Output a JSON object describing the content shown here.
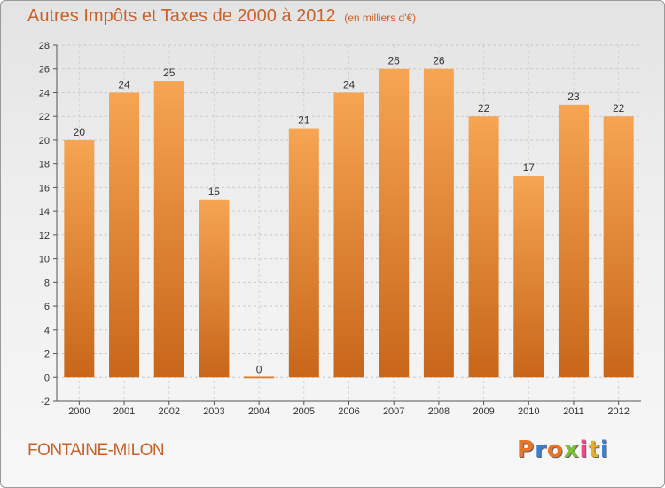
{
  "title": "Autres Impôts et Taxes de 2000 à 2012",
  "unit_note": "(en milliers d'€)",
  "commune": "FONTAINE-MILON",
  "logo": {
    "letters": [
      "P",
      "r",
      "o",
      "x",
      "i",
      "t",
      "i"
    ],
    "colors": [
      "#e8742a",
      "#3a7fd0",
      "#e8742a",
      "#7bbf3a",
      "#e84a8a",
      "#e8b02a",
      "#3a7fd0"
    ]
  },
  "colors": {
    "bar_light": "#f6a552",
    "bar_dark": "#c8661a",
    "accent": "#c8622a"
  },
  "chart_data": {
    "type": "bar",
    "title": "Autres Impôts et Taxes de 2000 à 2012",
    "categories": [
      "2000",
      "2001",
      "2002",
      "2003",
      "2004",
      "2005",
      "2006",
      "2007",
      "2008",
      "2009",
      "2010",
      "2011",
      "2012"
    ],
    "values": [
      20,
      24,
      25,
      15,
      0,
      21,
      24,
      26,
      26,
      22,
      17,
      23,
      22
    ],
    "ylim": [
      -2,
      28
    ],
    "yticks": [
      -2,
      0,
      2,
      4,
      6,
      8,
      10,
      12,
      14,
      16,
      18,
      20,
      22,
      24,
      26,
      28
    ],
    "grid": true,
    "xlabel": "",
    "ylabel": ""
  }
}
